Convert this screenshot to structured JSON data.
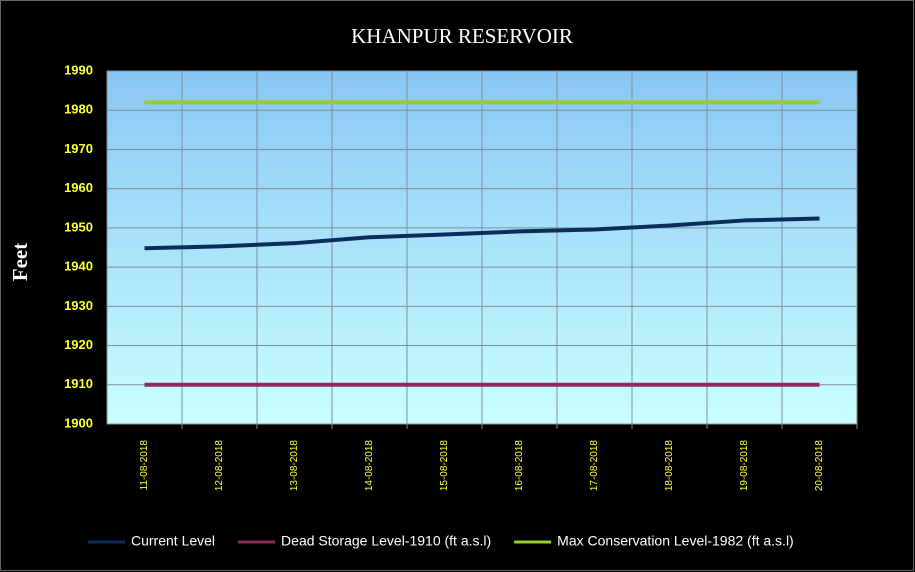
{
  "chart_data": {
    "type": "line",
    "title": "KHANPUR RESERVOIR",
    "y_label": "Feet",
    "categories": [
      "11-08-2018",
      "12-08-2018",
      "13-08-2018",
      "14-08-2018",
      "15-08-2018",
      "16-08-2018",
      "17-08-2018",
      "18-08-2018",
      "19-08-2018",
      "20-08-2018"
    ],
    "series": [
      {
        "name": "Current Level",
        "color": "#0b2d59",
        "values": [
          1944.8,
          1945.3,
          1946.1,
          1947.6,
          1948.3,
          1949.1,
          1949.6,
          1950.6,
          1951.9,
          1952.4
        ]
      },
      {
        "name": "Dead Storage Level-1910 (ft a.s.l)",
        "color": "#8e2b5e",
        "values": [
          1910,
          1910,
          1910,
          1910,
          1910,
          1910,
          1910,
          1910,
          1910,
          1910
        ]
      },
      {
        "name": "Max Conservation Level-1982 (ft a.s.l)",
        "color": "#99cc33",
        "values": [
          1982,
          1982,
          1982,
          1982,
          1982,
          1982,
          1982,
          1982,
          1982,
          1982
        ]
      }
    ],
    "ylim": [
      1900,
      1990
    ],
    "yticks": [
      1900,
      1910,
      1920,
      1930,
      1940,
      1950,
      1960,
      1970,
      1980,
      1990
    ],
    "grid": true
  }
}
